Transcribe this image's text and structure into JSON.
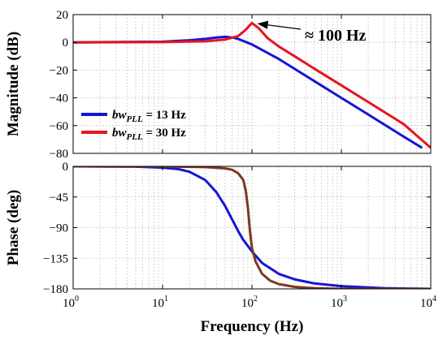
{
  "chart_data": [
    {
      "type": "line",
      "name": "magnitude",
      "ylabel": "Magnitude (dB)",
      "xscale": "log",
      "xlim": [
        1,
        10000
      ],
      "ylim": [
        -80,
        20
      ],
      "yticks": [
        20,
        0,
        -20,
        -40,
        -60,
        -80
      ],
      "yticklabels": [
        "20",
        "0",
        "−20",
        "−40",
        "−60",
        "−80"
      ],
      "grid": true,
      "legend": {
        "placement": "bottom-left",
        "entries": [
          {
            "italic": "bw",
            "sub": "PLL",
            "rest": " = 13 Hz",
            "color": "#1515d6"
          },
          {
            "italic": "bw",
            "sub": "PLL",
            "rest": " = 30 Hz",
            "color": "#e8141e"
          }
        ]
      },
      "annotation": {
        "text": "≈ 100 Hz",
        "x": 100,
        "y": 14
      },
      "series": [
        {
          "color": "#1515d6",
          "x": [
            1,
            10,
            20,
            30,
            40,
            50,
            60,
            70,
            100,
            200,
            500,
            1000,
            2000,
            5000,
            8000
          ],
          "y": [
            0,
            0.5,
            1.5,
            2.5,
            3.5,
            4,
            3.5,
            2.5,
            -1.5,
            -12,
            -28,
            -40,
            -52,
            -68,
            -76
          ]
        },
        {
          "color": "#e8141e",
          "x": [
            1,
            10,
            30,
            50,
            70,
            85,
            100,
            120,
            150,
            200,
            300,
            500,
            1000,
            2000,
            5000,
            10000
          ],
          "y": [
            0,
            0.2,
            0.8,
            2,
            4.5,
            9,
            14,
            10,
            3,
            -3,
            -10,
            -19,
            -31,
            -43,
            -59,
            -76
          ]
        }
      ]
    },
    {
      "type": "line",
      "name": "phase",
      "ylabel": "Phase (deg)",
      "xlabel": "Frequency (Hz)",
      "xscale": "log",
      "xlim": [
        1,
        10000
      ],
      "ylim": [
        -180,
        0
      ],
      "yticks": [
        0,
        -45,
        -90,
        -135,
        -180
      ],
      "yticklabels": [
        "0",
        "−45",
        "−90",
        "−135",
        "−180"
      ],
      "xticks": [
        1,
        10,
        100,
        1000,
        10000
      ],
      "xticklabels": [
        {
          "base": "10",
          "exp": "0"
        },
        {
          "base": "10",
          "exp": "1"
        },
        {
          "base": "10",
          "exp": "2"
        },
        {
          "base": "10",
          "exp": "3"
        },
        {
          "base": "10",
          "exp": "4"
        }
      ],
      "grid": true,
      "series": [
        {
          "color": "#1515d6",
          "x": [
            1,
            5,
            10,
            15,
            20,
            30,
            40,
            50,
            60,
            70,
            80,
            100,
            130,
            200,
            300,
            500,
            1000,
            3000,
            10000
          ],
          "y": [
            0,
            -0.5,
            -2,
            -4,
            -8,
            -20,
            -38,
            -58,
            -78,
            -95,
            -108,
            -125,
            -142,
            -158,
            -166,
            -172,
            -176,
            -179,
            -180
          ]
        },
        {
          "color": "#7a3a22",
          "x": [
            1,
            10,
            30,
            50,
            60,
            70,
            80,
            85,
            90,
            95,
            100,
            110,
            130,
            160,
            200,
            300,
            500,
            1000,
            10000
          ],
          "y": [
            0,
            -0.2,
            -1,
            -3,
            -5,
            -10,
            -20,
            -35,
            -60,
            -95,
            -120,
            -140,
            -158,
            -168,
            -173,
            -177,
            -179,
            -180,
            -180
          ]
        }
      ]
    }
  ]
}
